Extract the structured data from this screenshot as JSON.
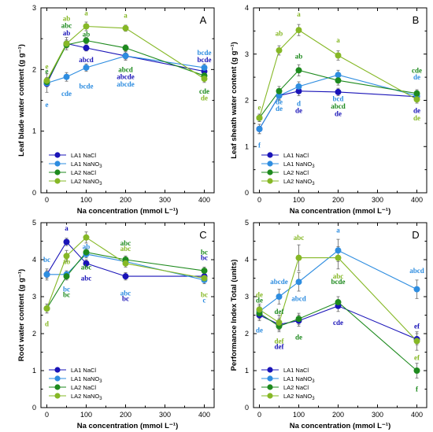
{
  "colors": {
    "LA1 NaCl": "#1a14b8",
    "LA1 NaNO3": "#2e8de0",
    "LA2 NaCl": "#1e8a1e",
    "LA2 NaNO3": "#86b826"
  },
  "chart_data": [
    {
      "panel": "A",
      "type": "line",
      "xlabel": "Na concentration (mmol L⁻¹)",
      "ylabel": "Leaf blade water content (g g⁻¹)",
      "xlim": [
        -15,
        425
      ],
      "ylim": [
        0,
        3
      ],
      "yticks": [
        0,
        1,
        2,
        3
      ],
      "x": [
        0,
        50,
        100,
        200,
        400
      ],
      "legend_position": "bottom-left",
      "series": [
        {
          "name": "LA1 NaCl",
          "values": [
            1.77,
            2.42,
            2.35,
            2.22,
            1.97
          ],
          "errors": [
            0.05,
            0.06,
            0.05,
            0.05,
            0.06
          ]
        },
        {
          "name": "LA1 NaNO3",
          "values": [
            1.78,
            1.88,
            2.03,
            2.22,
            2.03
          ],
          "errors": [
            0.15,
            0.07,
            0.06,
            0.07,
            0.06
          ]
        },
        {
          "name": "LA2 NaCl",
          "values": [
            1.8,
            2.4,
            2.47,
            2.35,
            1.9
          ],
          "errors": [
            0.05,
            0.05,
            0.05,
            0.05,
            0.05
          ]
        },
        {
          "name": "LA2 NaNO3",
          "values": [
            1.82,
            2.42,
            2.7,
            2.67,
            1.85
          ],
          "errors": [
            0.05,
            0.1,
            0.07,
            0.05,
            0.06
          ]
        }
      ],
      "annotations": [
        {
          "x": 0,
          "y": 2.05,
          "text": "e",
          "series": "LA2 NaNO3"
        },
        {
          "x": 0,
          "y": 1.97,
          "text": "e",
          "series": "LA2 NaCl"
        },
        {
          "x": 0,
          "y": 1.43,
          "text": "e",
          "series": "LA1 NaNO3"
        },
        {
          "x": 50,
          "y": 1.61,
          "text": "cde",
          "series": "LA1 NaNO3"
        },
        {
          "x": 100,
          "y": 2.92,
          "text": "a",
          "series": "LA2 NaNO3"
        },
        {
          "x": 100,
          "y": 2.57,
          "text": "ab",
          "series": "LA2 NaCl"
        },
        {
          "x": 100,
          "y": 1.73,
          "text": "bcde",
          "series": "LA1 NaNO3"
        },
        {
          "x": 200,
          "y": 2.88,
          "text": "a",
          "series": "LA2 NaNO3"
        },
        {
          "x": 200,
          "y": 2.0,
          "text": "abcd",
          "series": "LA2 NaCl"
        },
        {
          "x": 200,
          "y": 1.88,
          "text": "abcde",
          "series": "LA1 NaCl"
        },
        {
          "x": 200,
          "y": 1.76,
          "text": "abcde",
          "series": "LA1 NaNO3"
        },
        {
          "x": 400,
          "y": 2.27,
          "text": "bcde",
          "series": "LA1 NaNO3"
        },
        {
          "x": 400,
          "y": 2.16,
          "text": "bcde",
          "series": "LA1 NaCl"
        },
        {
          "x": 400,
          "y": 1.65,
          "text": "cde",
          "series": "LA2 NaCl"
        },
        {
          "x": 400,
          "y": 1.54,
          "text": "de",
          "series": "LA2 NaNO3"
        }
      ],
      "annotations_left": [
        {
          "x": 50,
          "y": 2.83,
          "text": "ab",
          "series": "LA2 NaNO3"
        },
        {
          "x": 50,
          "y": 2.71,
          "text": "abc",
          "series": "LA2 NaCl"
        },
        {
          "x": 50,
          "y": 2.59,
          "text": "ab",
          "series": "LA1 NaCl"
        },
        {
          "x": 100,
          "y": 2.16,
          "text": "abcd",
          "series": "LA1 NaCl"
        }
      ]
    },
    {
      "panel": "B",
      "type": "line",
      "xlabel": "Na concentration (mmol L⁻¹)",
      "ylabel": "Leaf sheath water content (g g⁻¹)",
      "xlim": [
        -15,
        425
      ],
      "ylim": [
        0,
        4
      ],
      "yticks": [
        0,
        1,
        2,
        3,
        4
      ],
      "x": [
        0,
        50,
        100,
        200,
        400
      ],
      "legend_position": "bottom-left",
      "series": [
        {
          "name": "LA1 NaCl",
          "values": [
            1.38,
            2.1,
            2.2,
            2.18,
            2.08
          ],
          "errors": [
            0.1,
            0.08,
            0.1,
            0.08,
            0.07
          ]
        },
        {
          "name": "LA1 NaNO3",
          "values": [
            1.38,
            2.1,
            2.3,
            2.55,
            2.1
          ],
          "errors": [
            0.1,
            0.1,
            0.1,
            0.1,
            0.07
          ]
        },
        {
          "name": "LA2 NaCl",
          "values": [
            1.62,
            2.2,
            2.65,
            2.43,
            2.15
          ],
          "errors": [
            0.08,
            0.1,
            0.12,
            0.1,
            0.08
          ]
        },
        {
          "name": "LA2 NaNO3",
          "values": [
            1.62,
            3.08,
            3.52,
            2.97,
            2.02
          ],
          "errors": [
            0.08,
            0.1,
            0.12,
            0.1,
            0.08
          ]
        }
      ],
      "annotations": [
        {
          "x": 0,
          "y": 1.85,
          "text": "e",
          "series": "LA2 NaNO3"
        },
        {
          "x": 0,
          "y": 1.03,
          "text": "f",
          "series": "LA1 NaNO3"
        },
        {
          "x": 50,
          "y": 3.45,
          "text": "ab",
          "series": "LA2 NaNO3"
        },
        {
          "x": 50,
          "y": 1.82,
          "text": "de",
          "series": "LA1 NaNO3"
        },
        {
          "x": 100,
          "y": 3.86,
          "text": "a",
          "series": "LA2 NaNO3"
        },
        {
          "x": 100,
          "y": 2.95,
          "text": "ab",
          "series": "LA2 NaCl"
        },
        {
          "x": 100,
          "y": 1.93,
          "text": "d",
          "series": "LA1 NaNO3"
        },
        {
          "x": 100,
          "y": 1.78,
          "text": "de",
          "series": "LA1 NaCl"
        },
        {
          "x": 200,
          "y": 3.3,
          "text": "a",
          "series": "LA2 NaNO3"
        },
        {
          "x": 200,
          "y": 2.03,
          "text": "bcd",
          "series": "LA1 NaNO3"
        },
        {
          "x": 200,
          "y": 1.87,
          "text": "abcd",
          "series": "LA2 NaCl"
        },
        {
          "x": 200,
          "y": 1.71,
          "text": "de",
          "series": "LA1 NaCl"
        },
        {
          "x": 400,
          "y": 2.65,
          "text": "cde",
          "series": "LA2 NaCl"
        },
        {
          "x": 400,
          "y": 2.5,
          "text": "de",
          "series": "LA1 NaNO3"
        },
        {
          "x": 400,
          "y": 1.78,
          "text": "de",
          "series": "LA1 NaCl"
        },
        {
          "x": 400,
          "y": 1.62,
          "text": "de",
          "series": "LA2 NaNO3"
        }
      ],
      "annotations_left": [
        {
          "x": 50,
          "y": 1.97,
          "text": "de",
          "series": "LA1 NaNO3"
        }
      ]
    },
    {
      "panel": "C",
      "type": "line",
      "xlabel": "Na concentration (mmol L⁻¹)",
      "ylabel": "Root water content (g g⁻¹)",
      "xlim": [
        -15,
        425
      ],
      "ylim": [
        0,
        5
      ],
      "yticks": [
        0,
        1,
        2,
        3,
        4,
        5
      ],
      "x": [
        0,
        50,
        100,
        200,
        400
      ],
      "legend_position": "bottom-left",
      "series": [
        {
          "name": "LA1 NaCl",
          "values": [
            3.6,
            4.48,
            3.9,
            3.55,
            3.55
          ],
          "errors": [
            0.1,
            0.1,
            0.1,
            0.1,
            0.1
          ]
        },
        {
          "name": "LA1 NaNO3",
          "values": [
            3.6,
            3.6,
            4.15,
            3.95,
            3.45
          ],
          "errors": [
            0.15,
            0.1,
            0.1,
            0.1,
            0.1
          ]
        },
        {
          "name": "LA2 NaCl",
          "values": [
            2.68,
            3.55,
            4.2,
            4.0,
            3.7
          ],
          "errors": [
            0.12,
            0.1,
            0.1,
            0.1,
            0.1
          ]
        },
        {
          "name": "LA2 NaNO3",
          "values": [
            2.68,
            4.1,
            4.6,
            3.9,
            3.5
          ],
          "errors": [
            0.12,
            0.15,
            0.15,
            0.1,
            0.1
          ]
        }
      ],
      "annotations": [
        {
          "x": 0,
          "y": 4.0,
          "text": "bc",
          "series": "LA1 NaNO3"
        },
        {
          "x": 0,
          "y": 2.27,
          "text": "d",
          "series": "LA2 NaNO3"
        },
        {
          "x": 50,
          "y": 4.85,
          "text": "a",
          "series": "LA1 NaCl"
        },
        {
          "x": 50,
          "y": 3.2,
          "text": "bc",
          "series": "LA1 NaNO3"
        },
        {
          "x": 50,
          "y": 3.05,
          "text": "bc",
          "series": "LA2 NaCl"
        },
        {
          "x": 100,
          "y": 3.5,
          "text": "abc",
          "series": "LA1 NaCl"
        },
        {
          "x": 200,
          "y": 4.45,
          "text": "abc",
          "series": "LA2 NaCl"
        },
        {
          "x": 200,
          "y": 4.3,
          "text": "abc",
          "series": "LA2 NaNO3"
        },
        {
          "x": 200,
          "y": 3.1,
          "text": "abc",
          "series": "LA1 NaNO3"
        },
        {
          "x": 200,
          "y": 2.95,
          "text": "bc",
          "series": "LA1 NaCl"
        },
        {
          "x": 400,
          "y": 4.2,
          "text": "bc",
          "series": "LA2 NaCl"
        },
        {
          "x": 400,
          "y": 4.05,
          "text": "bc",
          "series": "LA1 NaCl"
        },
        {
          "x": 400,
          "y": 3.05,
          "text": "bc",
          "series": "LA2 NaNO3"
        },
        {
          "x": 400,
          "y": 2.9,
          "text": "c",
          "series": "LA1 NaNO3"
        }
      ],
      "annotations_left": [
        {
          "x": 50,
          "y": 3.95,
          "text": "ab",
          "series": "LA2 NaNO3"
        },
        {
          "x": 100,
          "y": 4.35,
          "text": "ab",
          "series": "LA1 NaNO3"
        },
        {
          "x": 100,
          "y": 3.8,
          "text": "abc",
          "series": "LA2 NaCl"
        }
      ]
    },
    {
      "panel": "D",
      "type": "line",
      "xlabel": "Na concentration (mmol L⁻¹)",
      "ylabel": "Performance Index Total (units)",
      "xlim": [
        -15,
        425
      ],
      "ylim": [
        0,
        5
      ],
      "yticks": [
        0,
        1,
        2,
        3,
        4,
        5
      ],
      "x": [
        0,
        50,
        100,
        200,
        400
      ],
      "legend_position": "bottom-left",
      "series": [
        {
          "name": "LA1 NaCl",
          "values": [
            2.5,
            2.25,
            2.35,
            2.75,
            1.85
          ],
          "errors": [
            0.15,
            0.15,
            0.15,
            0.15,
            0.15
          ]
        },
        {
          "name": "LA1 NaNO3",
          "values": [
            2.6,
            3.0,
            3.4,
            4.25,
            3.2
          ],
          "errors": [
            0.15,
            0.2,
            0.25,
            0.3,
            0.25
          ]
        },
        {
          "name": "LA2 NaCl",
          "values": [
            2.55,
            2.2,
            2.4,
            2.85,
            1.0
          ],
          "errors": [
            0.15,
            0.15,
            0.15,
            0.15,
            0.2
          ]
        },
        {
          "name": "LA2 NaNO3",
          "values": [
            2.65,
            2.3,
            4.05,
            4.05,
            1.8
          ],
          "errors": [
            0.15,
            0.2,
            0.35,
            0.3,
            0.25
          ]
        }
      ],
      "annotations": [
        {
          "x": 0,
          "y": 3.05,
          "text": "de",
          "series": "LA2 NaNO3"
        },
        {
          "x": 0,
          "y": 2.9,
          "text": "de",
          "series": "LA2 NaCl"
        },
        {
          "x": 0,
          "y": 2.1,
          "text": "de",
          "series": "LA1 NaNO3"
        },
        {
          "x": 50,
          "y": 1.8,
          "text": "def",
          "series": "LA2 NaNO3"
        },
        {
          "x": 50,
          "y": 1.65,
          "text": "def",
          "series": "LA1 NaCl"
        },
        {
          "x": 100,
          "y": 2.95,
          "text": "abcd",
          "series": "LA1 NaNO3"
        },
        {
          "x": 100,
          "y": 1.9,
          "text": "de",
          "series": "LA2 NaCl"
        },
        {
          "x": 200,
          "y": 4.8,
          "text": "a",
          "series": "LA1 NaNO3"
        },
        {
          "x": 200,
          "y": 3.55,
          "text": "abc",
          "series": "LA2 NaNO3"
        },
        {
          "x": 200,
          "y": 3.4,
          "text": "bcde",
          "series": "LA2 NaCl"
        },
        {
          "x": 200,
          "y": 2.3,
          "text": "cde",
          "series": "LA1 NaCl"
        },
        {
          "x": 400,
          "y": 3.7,
          "text": "abcd",
          "series": "LA1 NaNO3"
        },
        {
          "x": 400,
          "y": 2.2,
          "text": "ef",
          "series": "LA1 NaCl"
        },
        {
          "x": 400,
          "y": 1.35,
          "text": "ef",
          "series": "LA2 NaNO3"
        },
        {
          "x": 400,
          "y": 0.5,
          "text": "f",
          "series": "LA2 NaCl"
        }
      ],
      "annotations_left": [
        {
          "x": 50,
          "y": 3.4,
          "text": "abcde",
          "series": "LA1 NaNO3"
        },
        {
          "x": 50,
          "y": 2.6,
          "text": "def",
          "series": "LA2 NaCl"
        },
        {
          "x": 100,
          "y": 4.6,
          "text": "abc",
          "series": "LA2 NaNO3"
        }
      ]
    }
  ]
}
